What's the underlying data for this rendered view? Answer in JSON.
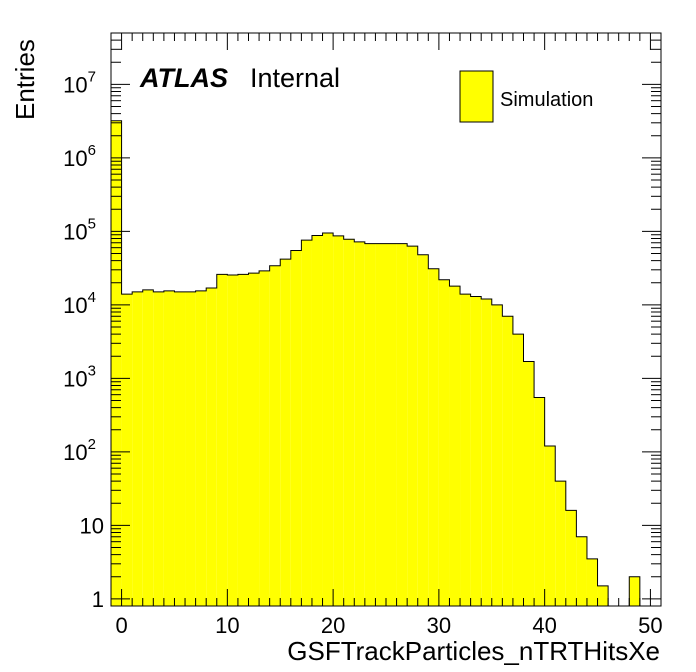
{
  "chart_data": {
    "type": "bar",
    "title": "",
    "xlabel": "GSFTrackParticles_nTRTHitsXe",
    "ylabel": "Entries",
    "ylog": true,
    "xlim": [
      -1,
      51
    ],
    "ylim": [
      0.8,
      50000000
    ],
    "bin_edges_start": -1,
    "bin_width": 1,
    "values": [
      3200000,
      14000,
      15000,
      16000,
      15000,
      15500,
      15000,
      15000,
      15500,
      17000,
      26000,
      25500,
      26000,
      27000,
      29000,
      34000,
      42000,
      55000,
      76000,
      88000,
      95000,
      87000,
      78000,
      72000,
      68000,
      68000,
      68000,
      68000,
      63000,
      48000,
      31000,
      22000,
      18000,
      14000,
      13000,
      12000,
      10000,
      7000,
      4000,
      1700,
      550,
      120,
      40,
      16,
      7,
      3.5,
      1.5,
      0,
      0,
      2,
      0,
      0
    ],
    "xticks": [
      "0",
      "10",
      "20",
      "30",
      "40",
      "50"
    ],
    "yticks": [
      {
        "base": "1",
        "exp": ""
      },
      {
        "base": "10",
        "exp": ""
      },
      {
        "base": "10",
        "exp": "2"
      },
      {
        "base": "10",
        "exp": "3"
      },
      {
        "base": "10",
        "exp": "4"
      },
      {
        "base": "10",
        "exp": "5"
      },
      {
        "base": "10",
        "exp": "6"
      },
      {
        "base": "10",
        "exp": "7"
      }
    ],
    "legend": {
      "position": "top-right",
      "entries": [
        "Simulation"
      ]
    },
    "fill_color": "#ffff00",
    "line_color": "#000000",
    "grid": false
  },
  "atlas": {
    "label": "ATLAS",
    "status": "Internal"
  }
}
